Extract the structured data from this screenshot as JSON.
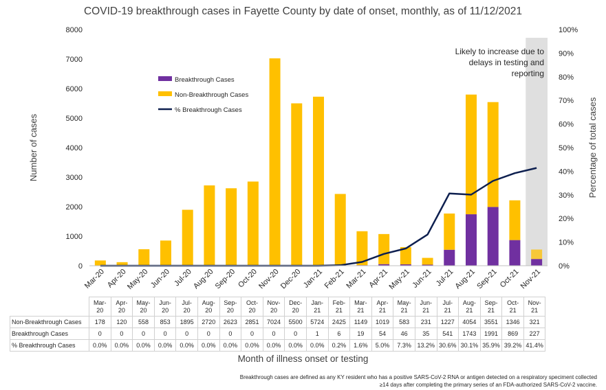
{
  "chart_data": {
    "type": "bar",
    "title": "COVID-19 breakthrough cases in Fayette County by date of onset, monthly, as of 11/12/2021",
    "xlabel": "Month of illness onset or testing",
    "ylabel": "Number of cases",
    "y2label": "Percentage of total cases",
    "ylim": [
      0,
      8000
    ],
    "y_ticks": [
      "0",
      "1000",
      "2000",
      "3000",
      "4000",
      "5000",
      "6000",
      "7000",
      "8000"
    ],
    "y2lim": [
      0,
      100
    ],
    "y2_ticks": [
      "0%",
      "10%",
      "20%",
      "30%",
      "40%",
      "50%",
      "60%",
      "70%",
      "80%",
      "90%",
      "100%"
    ],
    "stacked": true,
    "categories": [
      "Mar-20",
      "Apr-20",
      "May-20",
      "Jun-20",
      "Jul-20",
      "Aug-20",
      "Sep-20",
      "Oct-20",
      "Nov-20",
      "Dec-20",
      "Jan-21",
      "Feb-21",
      "Mar-21",
      "Apr-21",
      "May-21",
      "Jun-21",
      "Jul-21",
      "Aug-21",
      "Sep-21",
      "Oct-21",
      "Nov-21"
    ],
    "table_headers": [
      [
        "Mar-",
        "20"
      ],
      [
        "Apr-",
        "20"
      ],
      [
        "May-",
        "20"
      ],
      [
        "Jun-",
        "20"
      ],
      [
        "Jul-",
        "20"
      ],
      [
        "Aug-",
        "20"
      ],
      [
        "Sep-",
        "20"
      ],
      [
        "Oct-",
        "20"
      ],
      [
        "Nov-",
        "20"
      ],
      [
        "Dec-",
        "20"
      ],
      [
        "Jan-",
        "21"
      ],
      [
        "Feb-",
        "21"
      ],
      [
        "Mar-",
        "21"
      ],
      [
        "Apr-",
        "21"
      ],
      [
        "May-",
        "21"
      ],
      [
        "Jun-",
        "21"
      ],
      [
        "Jul-",
        "21"
      ],
      [
        "Aug-",
        "21"
      ],
      [
        "Sep-",
        "21"
      ],
      [
        "Oct-",
        "21"
      ],
      [
        "Nov-",
        "21"
      ]
    ],
    "series": [
      {
        "name": "Breakthrough Cases",
        "kind": "bar",
        "color": "#7030a0",
        "values": [
          0,
          0,
          0,
          0,
          0,
          0,
          0,
          0,
          0,
          0,
          1,
          6,
          19,
          54,
          46,
          35,
          541,
          1743,
          1991,
          869,
          227
        ]
      },
      {
        "name": "Non-Breakthrough Cases",
        "kind": "bar",
        "color": "#ffc000",
        "values": [
          178,
          120,
          558,
          853,
          1895,
          2720,
          2623,
          2851,
          7024,
          5500,
          5724,
          2425,
          1149,
          1019,
          583,
          231,
          1227,
          4054,
          3551,
          1346,
          321
        ]
      },
      {
        "name": "% Breakthrough Cases",
        "kind": "line",
        "axis": "right",
        "color": "#0d1f4f",
        "values": [
          0.0,
          0.0,
          0.0,
          0.0,
          0.0,
          0.0,
          0.0,
          0.0,
          0.0,
          0.0,
          0.0,
          0.2,
          1.6,
          5.0,
          7.3,
          13.2,
          30.6,
          30.1,
          35.9,
          39.2,
          41.4
        ],
        "labels": [
          "0.0%",
          "0.0%",
          "0.0%",
          "0.0%",
          "0.0%",
          "0.0%",
          "0.0%",
          "0.0%",
          "0.0%",
          "0.0%",
          "0.0%",
          "0.2%",
          "1.6%",
          "5.0%",
          "7.3%",
          "13.2%",
          "30.6%",
          "30.1%",
          "35.9%",
          "39.2%",
          "41.4%"
        ]
      }
    ],
    "shaded_category": "Nov-21",
    "shade_color": "#d9d9d9",
    "annotation": "Likely to increase due to delays in testing and reporting",
    "legend_position": "upper-left inside plot",
    "grid": false
  },
  "footnote": "Breakthrough cases are defined as any KY resident who has a positive SARS-CoV-2 RNA or antigen detected on a respiratory speciment collected ≥14 days after completing the primary series of an FDA-authorized SARS-CoV-2 vaccine."
}
